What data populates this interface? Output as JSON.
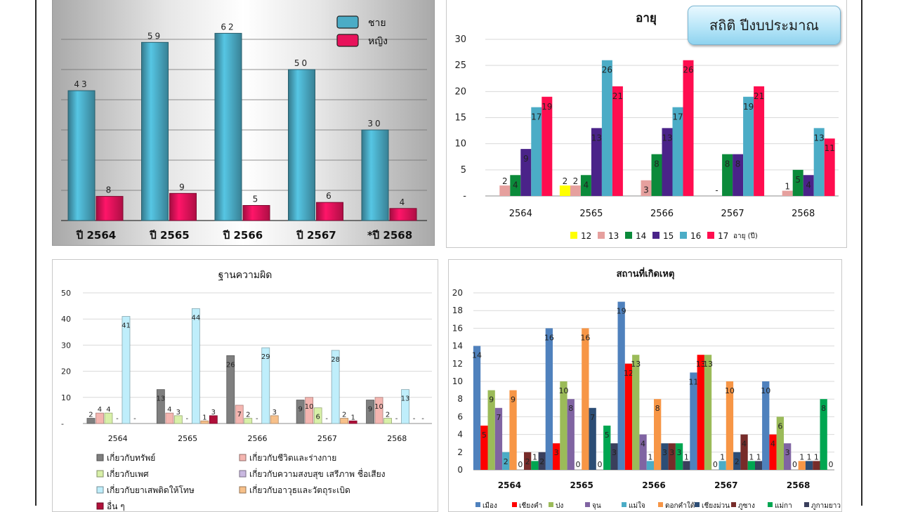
{
  "badge": {
    "label": "สถิติ ปีงบประมาณ"
  },
  "charts": [
    {
      "id": "gender",
      "type": "bar",
      "title": "",
      "categories": [
        "ปี 2564",
        "ปี 2565",
        "ปี 2566",
        "ปี 2567",
        "*ปี 2568"
      ],
      "series": [
        {
          "name": "ชาย",
          "values": [
            43,
            59,
            62,
            50,
            30
          ],
          "color": "#4bacc6"
        },
        {
          "name": "หญิง",
          "values": [
            8,
            9,
            5,
            6,
            4
          ],
          "color": "#e8125b"
        }
      ],
      "ylim": [
        0,
        75
      ],
      "legend": "top-right",
      "grid": true
    },
    {
      "id": "age",
      "type": "bar",
      "title": "อายุ",
      "categories": [
        "2564",
        "2565",
        "2566",
        "2567",
        "2568"
      ],
      "yticks": [
        "30",
        "25",
        "20",
        "15",
        "10",
        "5",
        "-"
      ],
      "ylim": [
        0,
        30
      ],
      "series": [
        {
          "name": "12",
          "values": [
            null,
            2,
            null,
            null,
            null
          ],
          "labels": [
            "",
            "2",
            "",
            "",
            ""
          ],
          "color": "#ffff00"
        },
        {
          "name": "13",
          "values": [
            2,
            2,
            3,
            null,
            1
          ],
          "labels": [
            "2",
            "2",
            "3",
            "-",
            "1"
          ],
          "color": "#e6a09e"
        },
        {
          "name": "14",
          "values": [
            4,
            4,
            8,
            8,
            5
          ],
          "labels": [
            "4",
            "4",
            "8",
            "8",
            "5"
          ],
          "color": "#0b8a3a"
        },
        {
          "name": "15",
          "values": [
            9,
            13,
            13,
            8,
            4
          ],
          "labels": [
            "9",
            "13",
            "13",
            "8",
            "4"
          ],
          "color": "#4a2389"
        },
        {
          "name": "16",
          "values": [
            17,
            26,
            17,
            19,
            13
          ],
          "labels": [
            "17",
            "26",
            "17",
            "19",
            "13"
          ],
          "color": "#4bacc6"
        },
        {
          "name": "17",
          "values": [
            19,
            21,
            26,
            21,
            11
          ],
          "labels": [
            "19",
            "21",
            "26",
            "21",
            "11"
          ],
          "color": "#ff0d4f"
        }
      ],
      "legend_suffix": "อายุ (ปี)",
      "legend": "bottom"
    },
    {
      "id": "offense",
      "type": "bar",
      "title": "ฐานความผิด",
      "categories": [
        "2564",
        "2565",
        "2566",
        "2567",
        "2568"
      ],
      "yticks": [
        "50",
        "40",
        "30",
        "20",
        "10",
        "-"
      ],
      "ylim": [
        0,
        50
      ],
      "series": [
        {
          "name": "เกี่ยวกับทรัพย์",
          "values": [
            2,
            13,
            26,
            9,
            9
          ],
          "labels": [
            "2",
            "13",
            "26",
            "9",
            "9"
          ],
          "color": "#7f7f7f"
        },
        {
          "name": "เกี่ยวกับชีวิตและร่างกาย",
          "values": [
            4,
            4,
            7,
            10,
            10
          ],
          "labels": [
            "4",
            "4",
            "7",
            "10",
            "10"
          ],
          "color": "#f4b5b0"
        },
        {
          "name": "เกี่ยวกับเพศ",
          "values": [
            4,
            3,
            2,
            6,
            2
          ],
          "labels": [
            "4",
            "3",
            "2",
            "6",
            "2"
          ],
          "color": "#d8f0a8"
        },
        {
          "name": "เกี่ยวกับความสงบสุข เสรีภาพ ชื่อเสียง",
          "values": [
            null,
            null,
            null,
            null,
            null
          ],
          "labels": [
            "-",
            "-",
            "-",
            "-",
            "-"
          ],
          "color": "#c9b8e0"
        },
        {
          "name": "เกี่ยวกับยาเสพติดให้โทษ",
          "values": [
            41,
            44,
            29,
            28,
            13
          ],
          "labels": [
            "41",
            "44",
            "29",
            "28",
            "13"
          ],
          "color": "#bfeefb"
        },
        {
          "name": "เกี่ยวกับอาวุธและวัตถุระเบิด",
          "values": [
            null,
            1,
            3,
            2,
            null
          ],
          "labels": [
            "-",
            "1",
            "3",
            "2",
            "-"
          ],
          "color": "#f7c08a"
        },
        {
          "name": "อื่น ๆ",
          "values": [
            null,
            3,
            null,
            1,
            null
          ],
          "labels": [
            "",
            "3",
            "",
            "1",
            "-"
          ],
          "color": "#b0103a"
        }
      ],
      "legend": "bottom"
    },
    {
      "id": "place",
      "type": "bar",
      "title": "สถานที่เกิดเหตุ",
      "categories": [
        "2564",
        "2565",
        "2566",
        "2567",
        "2568"
      ],
      "yticks": [
        "20",
        "18",
        "16",
        "14",
        "12",
        "10",
        "8",
        "6",
        "4",
        "2",
        "0"
      ],
      "ylim": [
        0,
        20
      ],
      "series": [
        {
          "name": "เมือง",
          "values": [
            14,
            16,
            19,
            11,
            10
          ],
          "color": "#4f81bd"
        },
        {
          "name": "เชียงคำ",
          "values": [
            5,
            3,
            12,
            13,
            4
          ],
          "color": "#ff0000"
        },
        {
          "name": "ปง",
          "values": [
            9,
            10,
            13,
            13,
            6
          ],
          "color": "#9bbb59"
        },
        {
          "name": "จุน",
          "values": [
            7,
            8,
            4,
            0,
            3
          ],
          "color": "#8064a2"
        },
        {
          "name": "แม่ใจ",
          "values": [
            2,
            0,
            1,
            1,
            0
          ],
          "color": "#4bacc6"
        },
        {
          "name": "ดอกคำใต้",
          "values": [
            9,
            16,
            8,
            10,
            1
          ],
          "color": "#f79646"
        },
        {
          "name": "เชียงม่วน",
          "values": [
            0,
            7,
            3,
            2,
            1
          ],
          "color": "#2c4d75"
        },
        {
          "name": "ภูซาง",
          "values": [
            2,
            0,
            3,
            4,
            1
          ],
          "color": "#772c2a"
        },
        {
          "name": "แม่กา",
          "values": [
            1,
            5,
            3,
            1,
            8
          ],
          "color": "#00a651"
        },
        {
          "name": "ภูกามยาว",
          "values": [
            2,
            3,
            1,
            1,
            0
          ],
          "color": "#3a3f5c"
        }
      ],
      "legend": "bottom"
    }
  ]
}
